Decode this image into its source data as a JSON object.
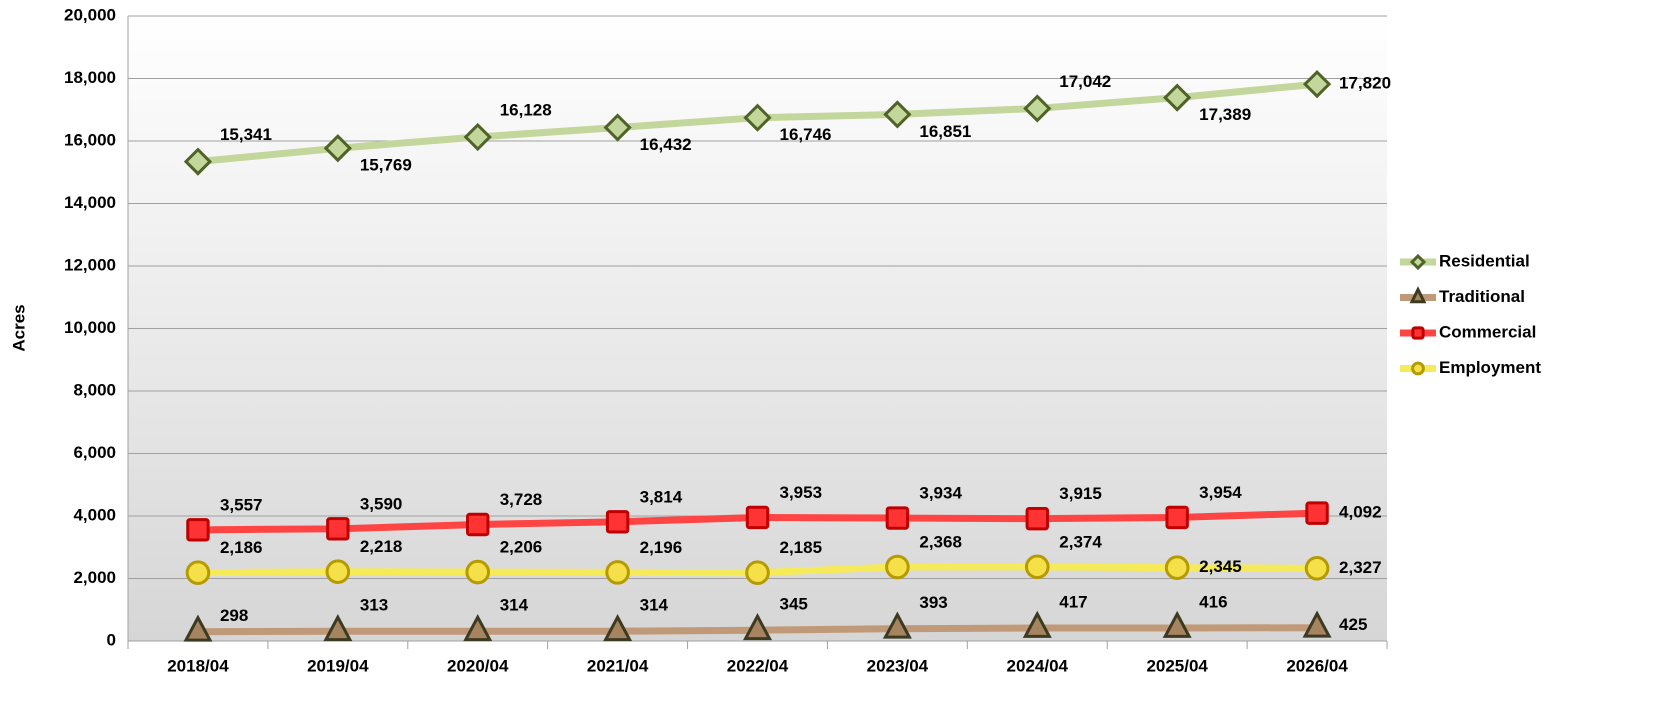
{
  "chart_data": {
    "type": "line",
    "y_label": "Acres",
    "categories": [
      "2018/04",
      "2019/04",
      "2020/04",
      "2021/04",
      "2022/04",
      "2023/04",
      "2024/04",
      "2025/04",
      "2026/04"
    ],
    "ylim": [
      0,
      20000
    ],
    "yticks": [
      0,
      {
        "value": 2000,
        "label": "2,000"
      },
      {
        "value": 4000,
        "label": "4,000"
      },
      {
        "value": 6000,
        "label": "6,000"
      },
      {
        "value": 8000,
        "label": "8,000"
      },
      {
        "value": 10000,
        "label": "10,000"
      },
      {
        "value": 12000,
        "label": "12,000"
      },
      {
        "value": 14000,
        "label": "14,000"
      },
      {
        "value": 16000,
        "label": "16,000"
      },
      {
        "value": 18000,
        "label": "18,000"
      },
      {
        "value": 20000,
        "label": "20,000"
      }
    ],
    "grid": true,
    "legend": "right",
    "series": [
      {
        "name": "Residential",
        "color": "#c3d69b",
        "marker": "diamond",
        "marker_color": "#c3d69b",
        "marker_edge": "#4f6228",
        "values": [
          15341,
          15769,
          16128,
          16432,
          16746,
          16851,
          17042,
          17389,
          17820
        ],
        "value_labels": [
          "15,341",
          "15,769",
          "16,128",
          "16,432",
          "16,746",
          "16,851",
          "17,042",
          "17,389",
          "17,820"
        ]
      },
      {
        "name": "Traditional",
        "color": "#c09a78",
        "marker": "triangle",
        "marker_color": "#a6845f",
        "marker_edge": "#3d3a22",
        "values": [
          298,
          313,
          314,
          314,
          345,
          393,
          417,
          416,
          425
        ],
        "value_labels": [
          "298",
          "313",
          "314",
          "314",
          "345",
          "393",
          "417",
          "416",
          "425"
        ]
      },
      {
        "name": "Commercial",
        "color": "#ff4444",
        "marker": "square",
        "marker_color": "#ff3333",
        "marker_edge": "#c00000",
        "values": [
          3557,
          3590,
          3728,
          3814,
          3953,
          3934,
          3915,
          3954,
          4092
        ],
        "value_labels": [
          "3,557",
          "3,590",
          "3,728",
          "3,814",
          "3,953",
          "3,934",
          "3,915",
          "3,954",
          "4,092"
        ]
      },
      {
        "name": "Employment",
        "color": "#f5ea5a",
        "marker": "circle",
        "marker_color": "#f5e04a",
        "marker_edge": "#b59a00",
        "values": [
          2186,
          2218,
          2206,
          2196,
          2185,
          2368,
          2374,
          2345,
          2327
        ],
        "value_labels": [
          "2,186",
          "2,218",
          "2,206",
          "2,196",
          "2,185",
          "2,368",
          "2,374",
          "2,345",
          "2,327"
        ]
      }
    ]
  }
}
